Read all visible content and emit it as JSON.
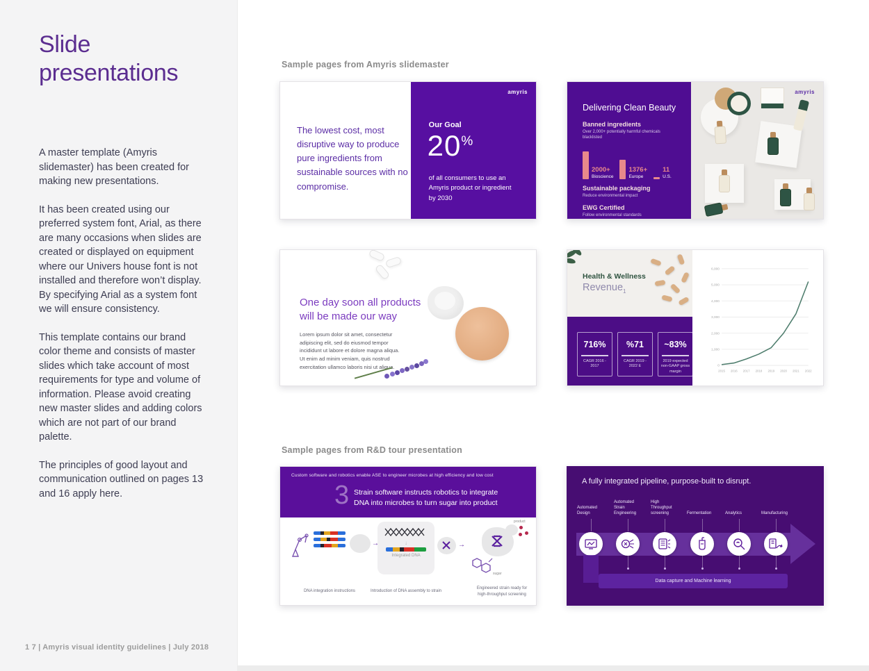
{
  "sidebar": {
    "title": "Slide presentations",
    "paragraphs": [
      "A master template (Amyris slidemaster) has been created for making new presentations.",
      "It has been created using our preferred system font, Arial, as there are many occasions when slides are created or displayed on equipment where our Univers house font is not installed and therefore won’t display. By specifying Arial as a system font we will ensure consistency.",
      "This template contains our brand color theme and consists of master slides which take account of most requirements for type and volume of information. Please avoid creating new master slides and adding colors which are not part of our brand palette.",
      "The principles of good layout and communication outlined on pages 13 and 16 apply here."
    ],
    "footer": "1 7 | Amyris visual identity guidelines | July 2018"
  },
  "sections": {
    "slidemaster_label": "Sample pages from Amyris slidemaster",
    "rnd_label": "Sample pages from R&D tour presentation"
  },
  "slides": {
    "goal": {
      "left_text": "The lowest cost, most disruptive way to produce pure ingredients from sustainable sources with no compromise.",
      "logo": "amyris",
      "kicker": "Our Goal",
      "stat_value": "20",
      "stat_unit": "%",
      "caption": "of all consumers to use an Amyris product or ingredient by 2030"
    },
    "clean_beauty": {
      "title": "Delivering Clean Beauty",
      "logo": "amyris",
      "banned_heading": "Banned ingredients",
      "banned_sub": "Over 2,000+ potentially harmful chemicals blacklisted",
      "sustainable_heading": "Sustainable packaging",
      "sustainable_sub": "Reduce environmental impact",
      "ewg_heading": "EWG Certified",
      "ewg_sub": "Follow environmental standards"
    },
    "one_day": {
      "heading": "One day soon all products will be made our way",
      "body": "Lorem ipsum dolor sit amet, consectetur adipiscing elit, sed do eiusmod tempor incididunt ut labore et dolore magna aliqua. Ut enim ad minim veniam, quis nostrud exercitation ullamco laboris nisi ut aliqua."
    },
    "health": {
      "title_line1": "Health & Wellness",
      "title_line2": "Revenue",
      "title_sub": "1",
      "stats": [
        {
          "value": "716%",
          "label": "CAGR 2016 - 2017"
        },
        {
          "value": "%71",
          "label": "CAGR 2019 - 2022 E"
        },
        {
          "value": "~83%",
          "label": "2019 expected non-GAAP gross margin"
        }
      ]
    },
    "rnd_process": {
      "top_caption": "Custom software and robotics enable ASE to engineer microbes at high efficiency and low cost",
      "step_number": "3",
      "step_text": "Strain software instructs robotics to integrate DNA into microbes to turn sugar into product",
      "integrated_label": "Integrated DNA",
      "sugar_label": "sugar",
      "product_label": "product",
      "captions": [
        "DNA integration instructions",
        "Introduction of DNA assembly to strain",
        "Engineered strain ready for high-throughput screening"
      ]
    },
    "pipeline": {
      "title": "A fully integrated pipeline, purpose-built to disrupt.",
      "steps": [
        "Automated Design",
        "Automated Strain Engineering",
        "High Throughput screening",
        "Fermentation",
        "Analytics",
        "Manufacturing"
      ],
      "banner": "Data capture and Machine learning"
    }
  },
  "chart_data": [
    {
      "type": "bar",
      "title": "Banned ingredients",
      "categories": [
        "Bioscience",
        "Europe",
        "U.S."
      ],
      "values": [
        2000,
        1376,
        11
      ],
      "value_labels": [
        "2000+",
        "1376+",
        "11"
      ],
      "bar_color": "#e8898b"
    },
    {
      "type": "line",
      "title": "Health & Wellness Revenue",
      "x": [
        2015,
        2016,
        2017,
        2018,
        2019,
        2020,
        2021,
        2022
      ],
      "values": [
        50,
        150,
        400,
        700,
        1100,
        2000,
        3200,
        5200
      ],
      "ylim": [
        0,
        6000
      ],
      "y_ticks": [
        0,
        1000,
        2000,
        3000,
        4000,
        5000,
        6000
      ],
      "line_color": "#4e7d6d",
      "grid": true,
      "legend": "none"
    }
  ],
  "colors": {
    "brand_purple": "#570fa1",
    "dark_purple": "#470d72",
    "sidebar_bg": "#f4f4f5",
    "salmon": "#e8898b",
    "green": "#2f5340",
    "chart_line": "#4e7d6d"
  }
}
